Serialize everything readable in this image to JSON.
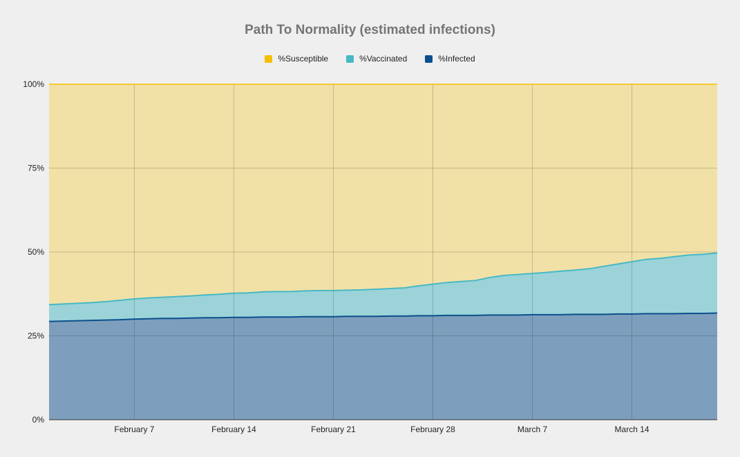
{
  "chart_data": {
    "type": "area",
    "stacked": true,
    "title": "Path To Normality (estimated infections)",
    "xlabel": "",
    "ylabel": "",
    "ylim": [
      0,
      100
    ],
    "y_ticks": [
      "0%",
      "25%",
      "50%",
      "75%",
      "100%"
    ],
    "x_ticks": [
      {
        "date": "2021-02-07",
        "label": "February 7"
      },
      {
        "date": "2021-02-14",
        "label": "February 14"
      },
      {
        "date": "2021-02-21",
        "label": "February 21"
      },
      {
        "date": "2021-02-28",
        "label": "February 28"
      },
      {
        "date": "2021-03-07",
        "label": "March 7"
      },
      {
        "date": "2021-03-14",
        "label": "March 14"
      }
    ],
    "x": [
      "2021-02-01",
      "2021-02-02",
      "2021-02-03",
      "2021-02-04",
      "2021-02-05",
      "2021-02-06",
      "2021-02-07",
      "2021-02-08",
      "2021-02-09",
      "2021-02-10",
      "2021-02-11",
      "2021-02-12",
      "2021-02-13",
      "2021-02-14",
      "2021-02-15",
      "2021-02-16",
      "2021-02-17",
      "2021-02-18",
      "2021-02-19",
      "2021-02-20",
      "2021-02-21",
      "2021-02-22",
      "2021-02-23",
      "2021-02-24",
      "2021-02-25",
      "2021-02-26",
      "2021-02-27",
      "2021-02-28",
      "2021-03-01",
      "2021-03-02",
      "2021-03-03",
      "2021-03-04",
      "2021-03-05",
      "2021-03-06",
      "2021-03-07",
      "2021-03-08",
      "2021-03-09",
      "2021-03-10",
      "2021-03-11",
      "2021-03-12",
      "2021-03-13",
      "2021-03-14",
      "2021-03-15",
      "2021-03-16",
      "2021-03-17",
      "2021-03-18",
      "2021-03-19",
      "2021-03-20"
    ],
    "series": [
      {
        "name": "%Infected",
        "color": "#0b4f8c",
        "values": [
          29.3,
          29.4,
          29.5,
          29.6,
          29.7,
          29.8,
          30.0,
          30.1,
          30.2,
          30.2,
          30.3,
          30.4,
          30.4,
          30.5,
          30.5,
          30.6,
          30.6,
          30.6,
          30.7,
          30.7,
          30.7,
          30.8,
          30.8,
          30.8,
          30.9,
          30.9,
          31.0,
          31.0,
          31.1,
          31.1,
          31.1,
          31.2,
          31.2,
          31.2,
          31.3,
          31.3,
          31.3,
          31.4,
          31.4,
          31.4,
          31.5,
          31.5,
          31.6,
          31.6,
          31.6,
          31.7,
          31.7,
          31.8
        ]
      },
      {
        "name": "%Vaccinated",
        "color": "#47b8c4",
        "values": [
          5.0,
          5.1,
          5.2,
          5.3,
          5.5,
          5.8,
          6.0,
          6.2,
          6.3,
          6.5,
          6.6,
          6.8,
          7.0,
          7.2,
          7.3,
          7.5,
          7.6,
          7.6,
          7.7,
          7.8,
          7.8,
          7.8,
          7.9,
          8.1,
          8.2,
          8.4,
          8.9,
          9.4,
          9.8,
          10.1,
          10.4,
          11.2,
          11.8,
          12.1,
          12.3,
          12.6,
          13.0,
          13.2,
          13.6,
          14.3,
          14.9,
          15.6,
          16.2,
          16.5,
          17.0,
          17.4,
          17.6,
          17.9
        ]
      },
      {
        "name": "%Susceptible",
        "color": "#f5bf00",
        "fill_to": 100
      }
    ],
    "legend_order": [
      "%Susceptible",
      "%Vaccinated",
      "%Infected"
    ],
    "legend_position": "top",
    "grid": true
  }
}
